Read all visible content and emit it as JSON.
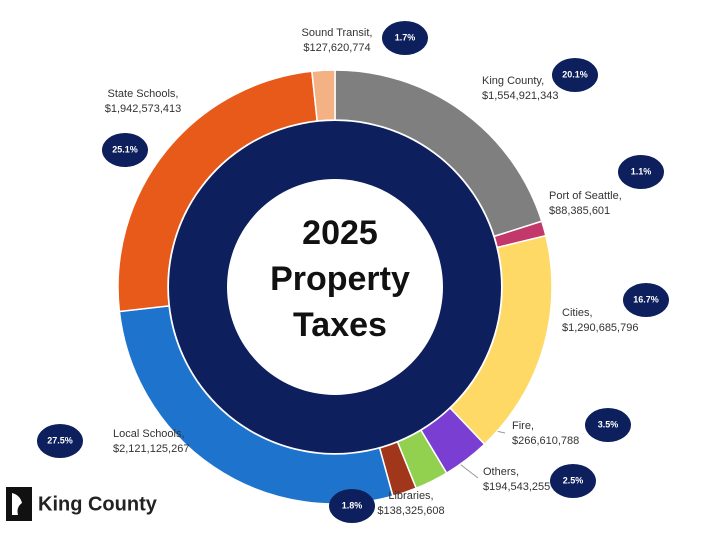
{
  "chart_data": {
    "type": "donut",
    "title": [
      "2025",
      "Property",
      "Taxes"
    ],
    "categories": [
      "King County,",
      "Port of Seattle,",
      "Cities,",
      "Fire,",
      "Others,",
      "Libraries,",
      "Local Schools,",
      "State Schools,",
      "Sound Transit,"
    ],
    "values": [
      20.1,
      1.1,
      16.7,
      3.5,
      2.5,
      1.8,
      27.5,
      25.1,
      1.7
    ],
    "value_labels": [
      "20.1%",
      "1.1%",
      "16.7%",
      "3.5%",
      "2.5%",
      "1.8%",
      "27.5%",
      "25.1%",
      "1.7%"
    ],
    "amounts": [
      1554921343,
      88385601,
      1290685796,
      266610788,
      194543255,
      138325608,
      2121125267,
      1942573413,
      127620774
    ],
    "amount_labels": [
      "$1,554,921,343",
      "$88,385,601",
      "$1,290,685,796",
      "$266,610,788",
      "$194,543,255",
      "$138,325,608",
      "$2,121,125,267",
      "$1,942,573,413",
      "$127,620,774"
    ],
    "colors": [
      "#7f7f7f",
      "#c2386a",
      "#ffd966",
      "#7a3fd2",
      "#92d050",
      "#a0361a",
      "#1e74cc",
      "#e85a1a",
      "#f4b183"
    ],
    "logo": "King County"
  }
}
